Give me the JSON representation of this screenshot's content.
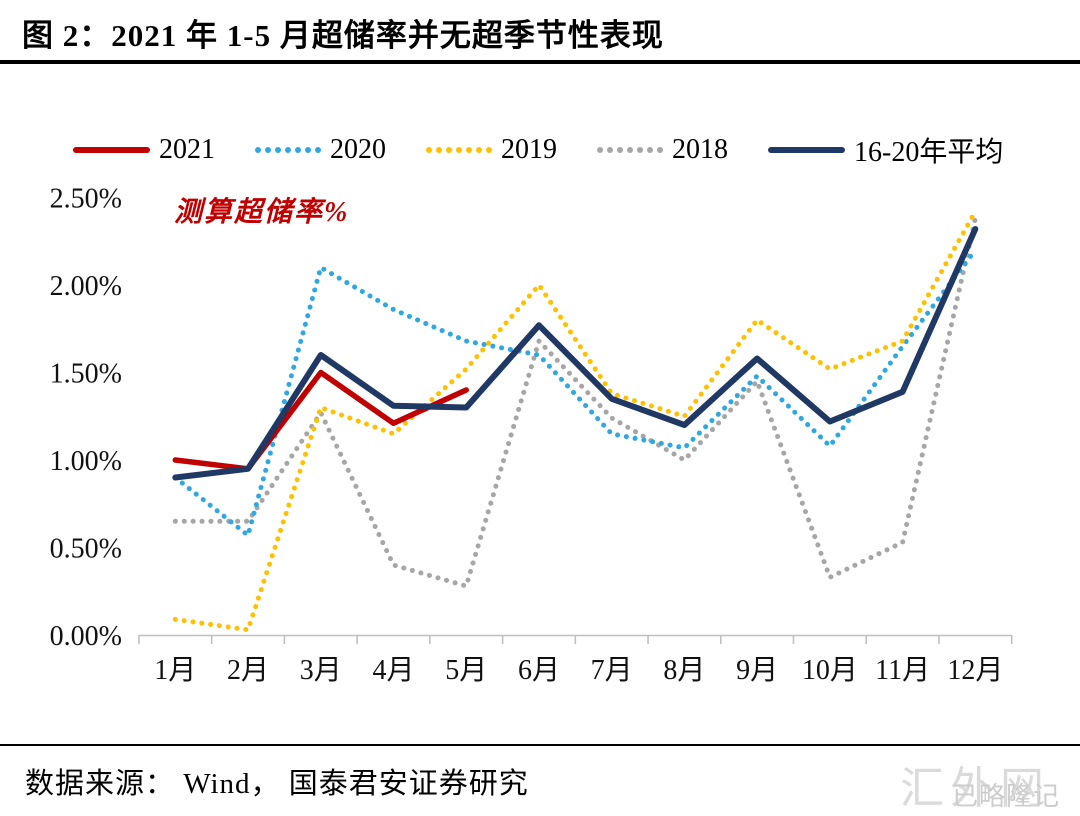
{
  "page": {
    "title": "图 2：2021 年 1-5 月超储率并无超季节性表现",
    "footer_source": "数据来源： Wind， 国泰君安证券研究",
    "watermark_large": "汇外网",
    "watermark_small": "已略隆记"
  },
  "annotation": {
    "text": "测算超储率%",
    "color": "#C00000"
  },
  "axis_colors": {
    "axis_line": "#BFBFBF",
    "tick": "#BFBFBF",
    "label": "#111111"
  },
  "chart_data": {
    "type": "line",
    "title": "图 2：2021 年 1-5 月超储率并无超季节性表现",
    "ylabel": "测算超储率%",
    "xlabel": "",
    "grid": false,
    "legend_position": "top",
    "ylim": [
      0,
      2.5
    ],
    "yticks": [
      "0.00%",
      "0.50%",
      "1.00%",
      "1.50%",
      "2.00%",
      "2.50%"
    ],
    "categories": [
      "1月",
      "2月",
      "3月",
      "4月",
      "5月",
      "6月",
      "7月",
      "8月",
      "9月",
      "10月",
      "11月",
      "12月"
    ],
    "series": [
      {
        "name": "2021",
        "color": "#C00000",
        "style": "solid",
        "values": [
          1.0,
          0.95,
          1.5,
          1.21,
          1.4,
          null,
          null,
          null,
          null,
          null,
          null,
          null
        ]
      },
      {
        "name": "2020",
        "color": "#2FA8E1",
        "style": "dotted",
        "values": [
          0.9,
          0.57,
          2.1,
          1.86,
          1.68,
          1.6,
          1.15,
          1.07,
          1.48,
          1.08,
          1.65,
          2.2
        ]
      },
      {
        "name": "2019",
        "color": "#FFC000",
        "style": "dotted",
        "values": [
          0.09,
          0.03,
          1.3,
          1.15,
          1.52,
          2.0,
          1.38,
          1.25,
          1.8,
          1.52,
          1.68,
          2.42
        ]
      },
      {
        "name": "2018",
        "color": "#A6A6A6",
        "style": "dotted",
        "values": [
          0.65,
          0.65,
          1.27,
          0.4,
          0.28,
          1.68,
          1.24,
          1.0,
          1.45,
          0.33,
          0.53,
          2.38
        ]
      },
      {
        "name": "16-20年平均",
        "color": "#1F3864",
        "style": "solid",
        "values": [
          0.9,
          0.95,
          1.6,
          1.31,
          1.3,
          1.77,
          1.35,
          1.2,
          1.58,
          1.22,
          1.39,
          2.32
        ]
      }
    ]
  }
}
